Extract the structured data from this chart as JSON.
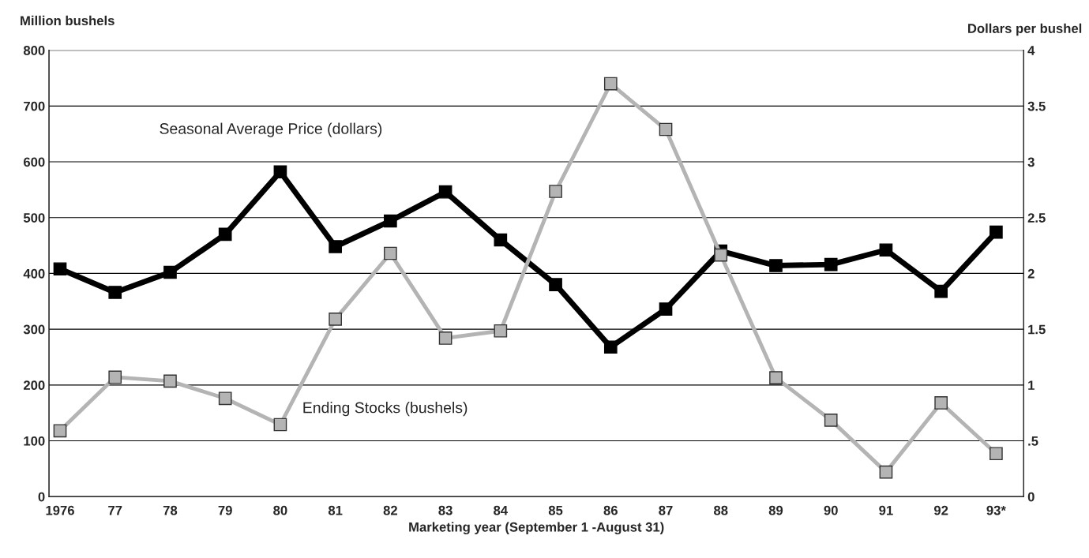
{
  "chart_data": {
    "type": "line",
    "xlabel": "Marketing year (September 1 -August 31)",
    "ylabel": "Million bushels",
    "y2label": "Dollars per bushel",
    "categories": [
      "1976",
      "77",
      "78",
      "79",
      "80",
      "81",
      "82",
      "83",
      "84",
      "85",
      "86",
      "87",
      "88",
      "89",
      "90",
      "91",
      "92",
      "93*"
    ],
    "series": [
      {
        "name": "Seasonal Average Price (dollars)",
        "color": "#000000",
        "axis": "y2",
        "values": [
          2.04,
          1.83,
          2.01,
          2.35,
          2.91,
          2.24,
          2.47,
          2.73,
          2.3,
          1.9,
          1.34,
          1.68,
          2.2,
          2.07,
          2.08,
          2.21,
          1.84,
          2.37
        ]
      },
      {
        "name": "Ending Stocks (bushels)",
        "color": "#b4b4b4",
        "values": [
          118,
          214,
          207,
          176,
          129,
          318,
          436,
          284,
          297,
          547,
          740,
          658,
          433,
          213,
          137,
          44,
          168,
          77
        ]
      }
    ],
    "ylim": [
      0,
      800
    ],
    "yticks": [
      0,
      100,
      200,
      300,
      400,
      500,
      600,
      700,
      800
    ],
    "y2lim": [
      0,
      4
    ],
    "y2ticks": [
      0,
      {
        "value": 0.5,
        "label": ".5"
      },
      1,
      1.5,
      2,
      2.5,
      3,
      3.5,
      4
    ],
    "grid": "y",
    "marker": "square",
    "line_style": "solid",
    "legend": false
  }
}
